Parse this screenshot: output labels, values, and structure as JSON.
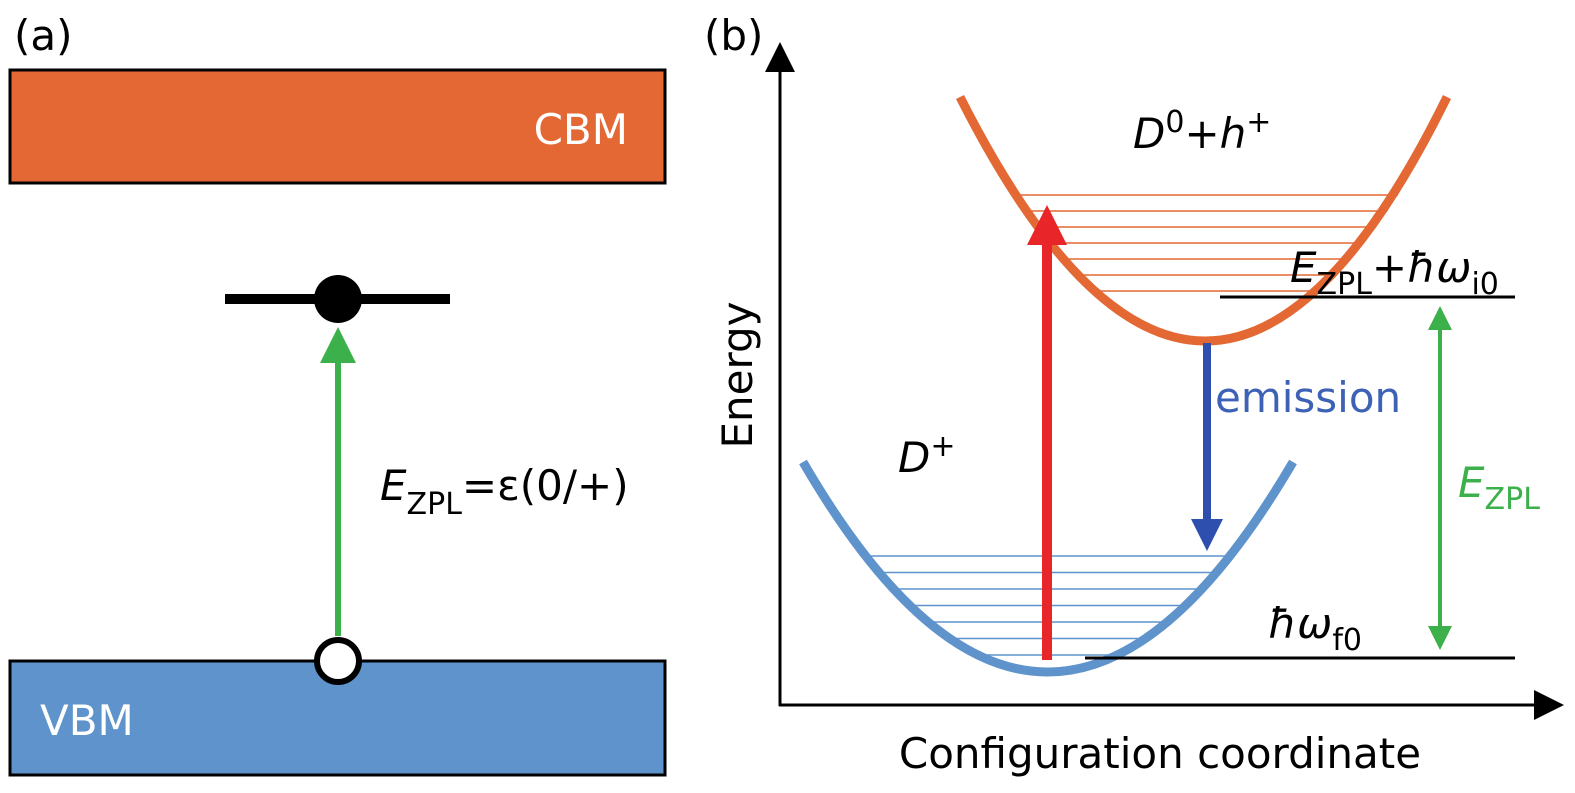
{
  "panel_a": {
    "label": "(a)",
    "cbm": "CBM",
    "vbm": "VBM",
    "transition": {
      "symbol": "E",
      "subscript": "ZPL",
      "rest": "=ε(0/+)"
    }
  },
  "panel_b": {
    "label": "(b)",
    "y_axis": "Energy",
    "x_axis": "Configuration coordinate",
    "upper_state": {
      "base": "D",
      "sup": "0",
      "mid": "+h",
      "sup2": "+"
    },
    "lower_state": {
      "base": "D",
      "sup": "+"
    },
    "emission": "emission",
    "upper_level": {
      "symbol": "E",
      "subscript": "ZPL",
      "plus": "+ħω",
      "subscript2": "i0"
    },
    "zpl": {
      "symbol": "E",
      "subscript": "ZPL"
    },
    "lower_level": {
      "symbol": "ħω",
      "subscript": "f0"
    }
  }
}
